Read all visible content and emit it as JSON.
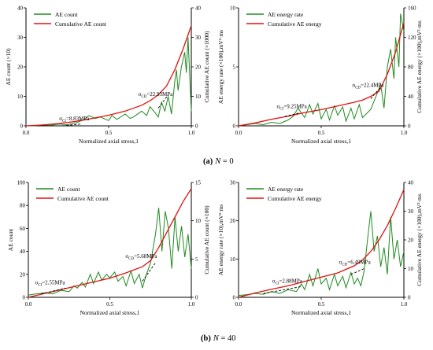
{
  "figure": {
    "caption_a_label": "(a)",
    "caption_a_var": "N",
    "caption_a_value": " = 0",
    "caption_b_label": "(b)",
    "caption_b_var": "N",
    "caption_b_value": " = 40"
  },
  "chart_data": [
    {
      "id": "a-left",
      "type": "line",
      "xlabel": "Normalized axial stress,1",
      "ylabel_left": "AE count (×10)",
      "ylabel_right": "Cumulative AE count (×1000)",
      "xlim": [
        0,
        1.0
      ],
      "ylim_left": [
        0,
        40
      ],
      "ylim_right": [
        0,
        40
      ],
      "x_ticks": [
        "0.0",
        "0.5",
        "1.0"
      ],
      "y_ticks_left": [
        "0",
        "10",
        "20",
        "30",
        "40"
      ],
      "y_ticks_right": [
        "0",
        "10",
        "20",
        "30",
        "40"
      ],
      "legend": [
        "AE count",
        "Cumulative AE count"
      ],
      "annotations": [
        {
          "label": "σCI=8.83MPa",
          "sub_base": "σ",
          "sub": "CI",
          "value": "=8.83MPa",
          "x": 0.33,
          "y": 0.6
        },
        {
          "label": "σCD=22.93MPa",
          "sub_base": "σ",
          "sub": "CD",
          "value": "=22.93MPa",
          "x": 0.84,
          "y": 8.5
        }
      ],
      "series": [
        {
          "name": "AE count",
          "axis": "left",
          "color": "#1e8a1e",
          "x": [
            0,
            0.05,
            0.1,
            0.15,
            0.2,
            0.25,
            0.3,
            0.35,
            0.38,
            0.42,
            0.45,
            0.5,
            0.52,
            0.55,
            0.6,
            0.63,
            0.65,
            0.7,
            0.73,
            0.75,
            0.78,
            0.8,
            0.82,
            0.84,
            0.86,
            0.88,
            0.9,
            0.91,
            0.92,
            0.94,
            0.96,
            0.97,
            0.98,
            1.0
          ],
          "y": [
            0,
            0,
            0.3,
            0.2,
            0.6,
            0.4,
            1.0,
            2.0,
            3.5,
            2.5,
            3.0,
            1.8,
            3.5,
            2.2,
            4.0,
            2.5,
            3.0,
            5.0,
            3.5,
            6.5,
            4.5,
            3.0,
            8.0,
            5.0,
            10.0,
            4.0,
            15.0,
            19.0,
            12.0,
            20.0,
            25.0,
            18.0,
            30.0,
            5.0
          ]
        },
        {
          "name": "Cumulative AE count",
          "axis": "right",
          "color": "#e01010",
          "x": [
            0,
            0.1,
            0.2,
            0.3,
            0.4,
            0.5,
            0.6,
            0.7,
            0.75,
            0.8,
            0.85,
            0.9,
            0.95,
            1.0
          ],
          "y": [
            0,
            0.3,
            0.8,
            1.5,
            2.5,
            3.6,
            5.0,
            7.0,
            8.5,
            10.5,
            13.5,
            19.0,
            26.0,
            34.0
          ]
        }
      ]
    },
    {
      "id": "a-right",
      "type": "line",
      "xlabel": "Normalized axial stress,1",
      "ylabel_left": "AE energy rate (×100),mV²·ms",
      "ylabel_right": "Cumulative AE energy (×100),mV²·ms",
      "xlim": [
        0,
        1.0
      ],
      "ylim_left": [
        0,
        10
      ],
      "ylim_right": [
        0,
        160
      ],
      "x_ticks": [
        "0.0",
        "0.5",
        "1.0"
      ],
      "y_ticks_left": [
        "0",
        "5",
        "10"
      ],
      "y_ticks_right": [
        "0",
        "40",
        "80",
        "120",
        "160"
      ],
      "legend": [
        "AE energy rate",
        "Cumulative AE energy"
      ],
      "annotations": [
        {
          "label": "σCI=9.25MPa",
          "sub_base": "σ",
          "sub": "CI",
          "value": "=9.25MPa",
          "x": 0.36,
          "y": 1.1
        },
        {
          "label": "σCD=22.4MPa",
          "sub_base": "σ",
          "sub": "CD",
          "value": "=22.4MPa",
          "x": 0.84,
          "y": 2.9
        }
      ],
      "series": [
        {
          "name": "AE energy rate",
          "axis": "left",
          "color": "#1e8a1e",
          "x": [
            0,
            0.05,
            0.1,
            0.15,
            0.2,
            0.25,
            0.3,
            0.33,
            0.36,
            0.4,
            0.43,
            0.45,
            0.48,
            0.5,
            0.53,
            0.55,
            0.58,
            0.6,
            0.63,
            0.65,
            0.68,
            0.7,
            0.73,
            0.75,
            0.8,
            0.84,
            0.86,
            0.88,
            0.9,
            0.92,
            0.94,
            0.95,
            0.97,
            0.98,
            1.0
          ],
          "y": [
            0,
            0.1,
            0.2,
            0.1,
            0.3,
            0.2,
            0.5,
            0.8,
            1.5,
            0.7,
            1.8,
            1.0,
            1.9,
            0.6,
            1.4,
            0.5,
            1.7,
            0.9,
            1.6,
            0.4,
            1.5,
            0.6,
            1.8,
            0.7,
            1.4,
            2.8,
            3.5,
            1.5,
            5.0,
            6.5,
            4.0,
            7.5,
            5.0,
            9.5,
            8.0
          ]
        },
        {
          "name": "Cumulative AE energy",
          "axis": "right",
          "color": "#e01010",
          "x": [
            0,
            0.1,
            0.2,
            0.3,
            0.4,
            0.5,
            0.6,
            0.7,
            0.75,
            0.8,
            0.85,
            0.9,
            0.95,
            1.0
          ],
          "y": [
            0,
            4,
            9,
            13,
            18,
            22,
            27,
            32,
            35,
            40,
            47,
            70,
            100,
            140
          ]
        }
      ]
    },
    {
      "id": "b-left",
      "type": "line",
      "xlabel": "Normalized axial stress,1",
      "ylabel_left": "AE count",
      "ylabel_right": "Cumulative AE count (×100)",
      "xlim": [
        0,
        1.0
      ],
      "ylim_left": [
        0,
        100
      ],
      "ylim_right": [
        0,
        15
      ],
      "x_ticks": [
        "0.0",
        "0.5",
        "1.0"
      ],
      "y_ticks_left": [
        "0",
        "20",
        "40",
        "60",
        "80",
        "100"
      ],
      "y_ticks_right": [
        "0",
        "5",
        "10",
        "15"
      ],
      "legend": [
        "AE count",
        "Cumulative AE count"
      ],
      "annotations": [
        {
          "label": "σCI=2.55MPa",
          "sub_base": "σ",
          "sub": "CI",
          "value": "=2.55MPa",
          "x": 0.22,
          "y": 8
        },
        {
          "label": "σCD=5.68MPa",
          "sub_base": "σ",
          "sub": "CD",
          "value": "=5.68MPa",
          "x": 0.78,
          "y": 30
        }
      ],
      "series": [
        {
          "name": "AE count",
          "axis": "left",
          "color": "#1e8a1e",
          "x": [
            0,
            0.05,
            0.1,
            0.15,
            0.2,
            0.25,
            0.28,
            0.3,
            0.33,
            0.35,
            0.38,
            0.4,
            0.43,
            0.45,
            0.48,
            0.5,
            0.53,
            0.55,
            0.58,
            0.6,
            0.63,
            0.65,
            0.68,
            0.7,
            0.72,
            0.75,
            0.78,
            0.8,
            0.82,
            0.84,
            0.86,
            0.88,
            0.9,
            0.92,
            0.94,
            0.96,
            0.98,
            1.0
          ],
          "y": [
            2,
            3,
            4,
            3,
            6,
            5,
            10,
            8,
            13,
            9,
            20,
            12,
            22,
            15,
            20,
            17,
            22,
            14,
            18,
            10,
            23,
            12,
            20,
            8,
            18,
            30,
            55,
            78,
            40,
            75,
            60,
            25,
            70,
            40,
            62,
            35,
            55,
            25
          ]
        },
        {
          "name": "Cumulative AE count",
          "axis": "right",
          "color": "#e01010",
          "x": [
            0,
            0.1,
            0.2,
            0.3,
            0.4,
            0.5,
            0.6,
            0.7,
            0.75,
            0.8,
            0.85,
            0.9,
            0.95,
            1.0
          ],
          "y": [
            0,
            0.5,
            1.0,
            1.5,
            2.0,
            2.5,
            3.2,
            4.0,
            4.8,
            6.5,
            8.5,
            10.5,
            12.5,
            14.2
          ]
        }
      ]
    },
    {
      "id": "b-right",
      "type": "line",
      "xlabel": "Normalized axial stress,1",
      "ylabel_left": "AE energy rate (×10),mV²·ms",
      "ylabel_right": "Cumulative AE energy (×100),mV²·ms",
      "xlim": [
        0,
        1.0
      ],
      "ylim_left": [
        0,
        30
      ],
      "ylim_right": [
        0,
        40
      ],
      "x_ticks": [
        "0.0",
        "0.5",
        "1.0"
      ],
      "y_ticks_left": [
        "0",
        "10",
        "20",
        "30"
      ],
      "y_ticks_right": [
        "0",
        "10",
        "20",
        "30",
        "40"
      ],
      "legend": [
        "AE energy rate",
        "Cumulative AE energy"
      ],
      "annotations": [
        {
          "label": "σCI=2.88MPa",
          "sub_base": "σ",
          "sub": "CI",
          "value": "=2.88MPa",
          "x": 0.38,
          "y": 2.8
        },
        {
          "label": "σCD=6.49MPa",
          "sub_base": "σ",
          "sub": "CD",
          "value": "=6.49MPa",
          "x": 0.76,
          "y": 7.5
        }
      ],
      "series": [
        {
          "name": "AE energy rate",
          "axis": "left",
          "color": "#1e8a1e",
          "x": [
            0,
            0.05,
            0.1,
            0.15,
            0.2,
            0.25,
            0.3,
            0.35,
            0.38,
            0.4,
            0.43,
            0.45,
            0.48,
            0.5,
            0.53,
            0.55,
            0.58,
            0.6,
            0.63,
            0.65,
            0.68,
            0.7,
            0.72,
            0.74,
            0.76,
            0.78,
            0.8,
            0.82,
            0.84,
            0.86,
            0.88,
            0.9,
            0.92,
            0.94,
            0.96,
            0.98,
            1.0
          ],
          "y": [
            0.5,
            0.7,
            1.0,
            0.8,
            1.5,
            1.0,
            2.0,
            1.5,
            3.5,
            2.0,
            6.0,
            3.0,
            7.5,
            3.5,
            5.0,
            2.0,
            6.0,
            3.0,
            5.5,
            2.5,
            6.5,
            3.5,
            5.0,
            3.0,
            7.0,
            15.0,
            22.5,
            12.0,
            16.0,
            8.0,
            13.0,
            6.0,
            21.0,
            10.0,
            15.0,
            8.0,
            12.0
          ]
        },
        {
          "name": "Cumulative AE energy",
          "axis": "right",
          "color": "#e01010",
          "x": [
            0,
            0.1,
            0.2,
            0.3,
            0.4,
            0.5,
            0.6,
            0.7,
            0.75,
            0.8,
            0.85,
            0.9,
            0.95,
            1.0
          ],
          "y": [
            0,
            1.5,
            2.8,
            4.0,
            5.5,
            7.0,
            8.5,
            11.0,
            13.0,
            16.0,
            20.0,
            25.0,
            31.0,
            37.5
          ]
        }
      ]
    }
  ]
}
